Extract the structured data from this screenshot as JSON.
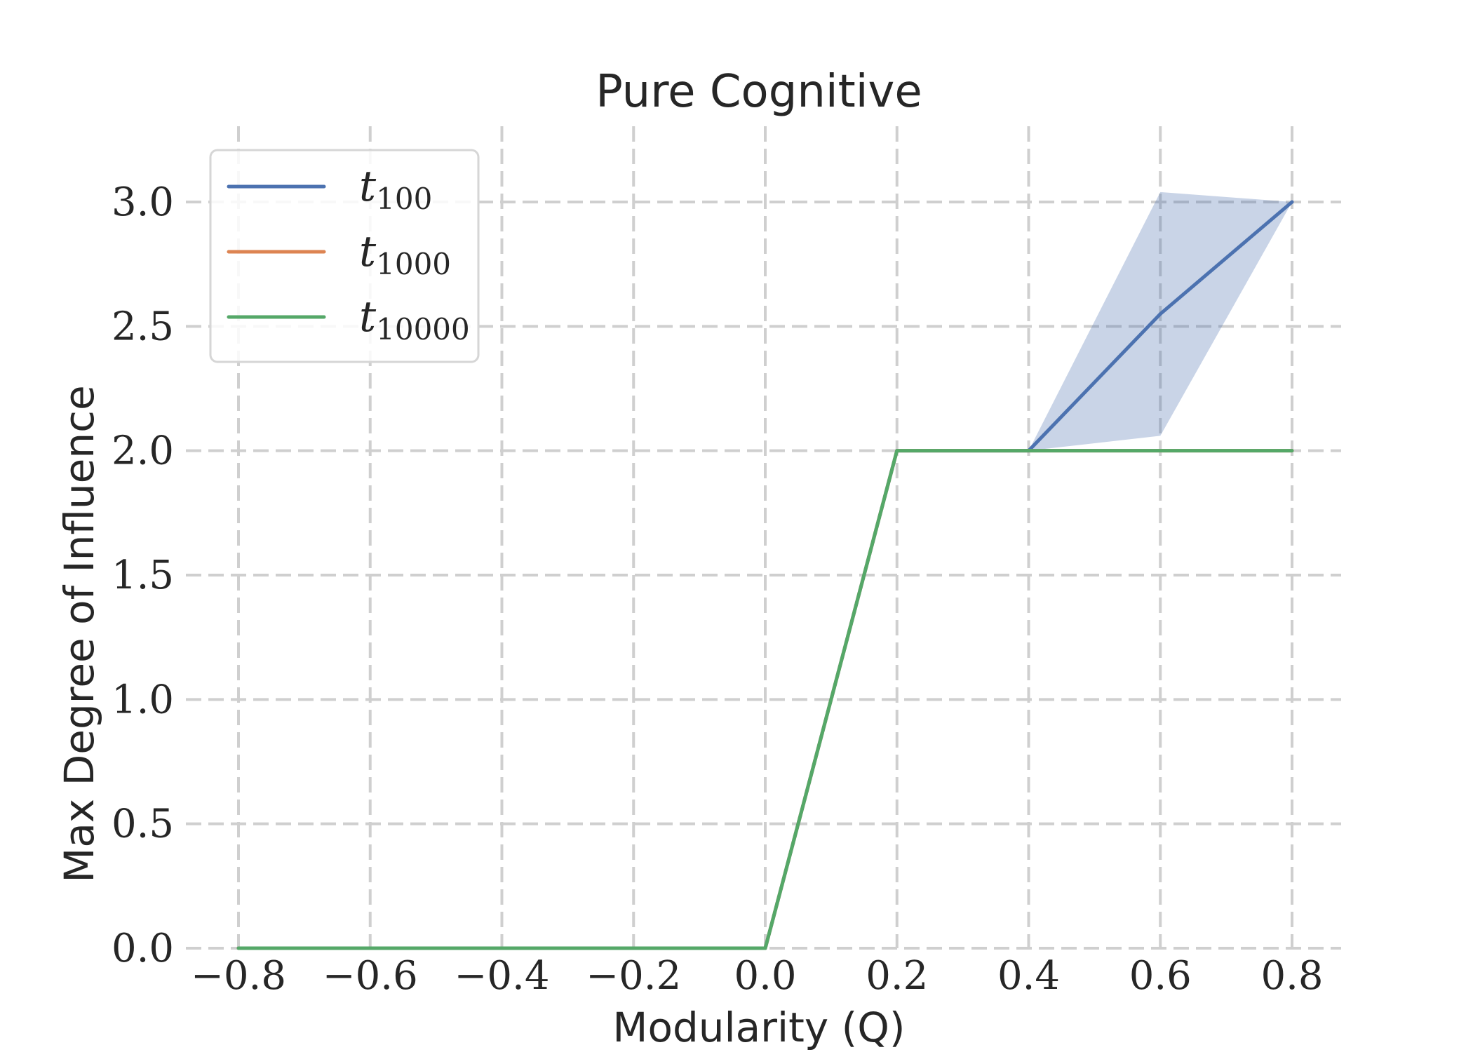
{
  "chart_data": {
    "type": "line",
    "title": "Pure Cognitive",
    "xlabel": "Modularity (Q)",
    "ylabel": "Max Degree of Influence",
    "xlim": [
      -0.88,
      0.88
    ],
    "ylim": [
      -0.05,
      3.3
    ],
    "x_ticks": [
      "−0.8",
      "−0.6",
      "−0.4",
      "−0.2",
      "0.0",
      "0.2",
      "0.4",
      "0.6",
      "0.8"
    ],
    "y_ticks": [
      "0.0",
      "0.5",
      "1.0",
      "1.5",
      "2.0",
      "2.5",
      "3.0"
    ],
    "grid": true,
    "legend_position": "top-left",
    "x": [
      -0.8,
      -0.6,
      -0.4,
      -0.2,
      0.0,
      0.2,
      0.4,
      0.6,
      0.8
    ],
    "series": [
      {
        "name": "t100",
        "name_base": "t",
        "name_sub": "100",
        "color": "#4c72b0",
        "values": [
          0,
          0,
          0,
          0,
          0,
          2,
          2,
          2.55,
          3.0
        ],
        "band_lower": [
          0,
          0,
          0,
          0,
          0,
          2,
          2,
          2.06,
          3.0
        ],
        "band_upper": [
          0,
          0,
          0,
          0,
          0,
          2,
          2,
          3.04,
          3.0
        ]
      },
      {
        "name": "t1000",
        "name_base": "t",
        "name_sub": "1000",
        "color": "#dd8452",
        "values": [
          0,
          0,
          0,
          0,
          0,
          2,
          2,
          2,
          2
        ]
      },
      {
        "name": "t10000",
        "name_base": "t",
        "name_sub": "10000",
        "color": "#55a868",
        "values": [
          0,
          0,
          0,
          0,
          0,
          2,
          2,
          2,
          2
        ]
      }
    ]
  }
}
